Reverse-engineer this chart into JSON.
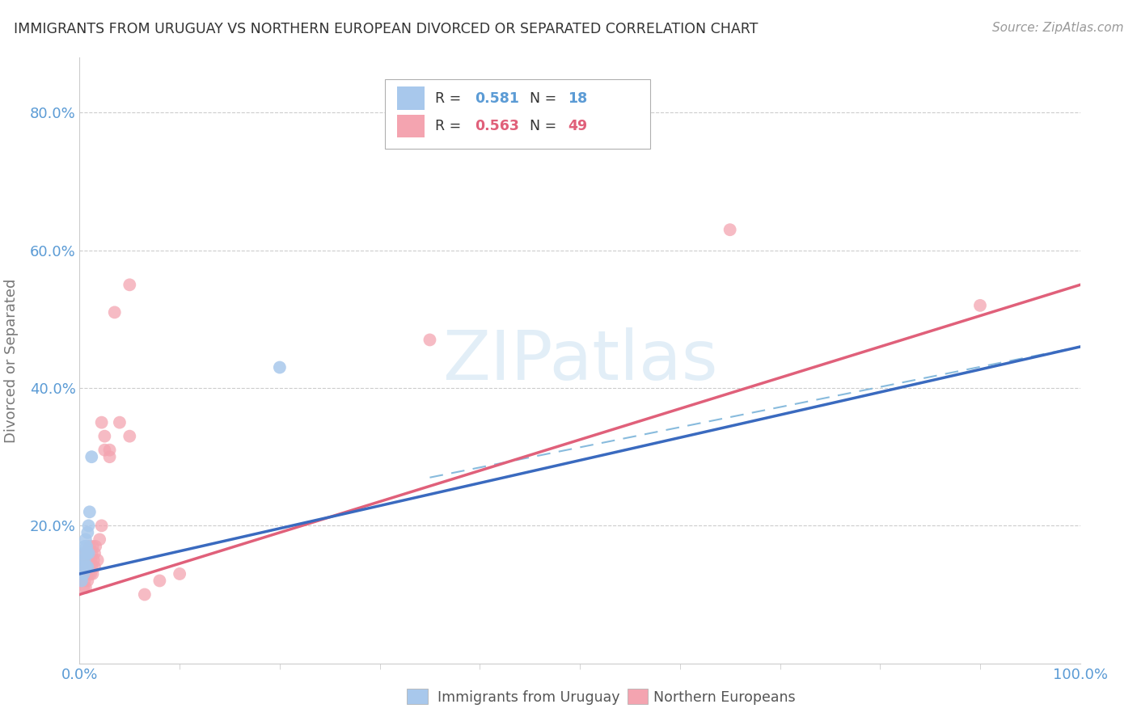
{
  "title": "IMMIGRANTS FROM URUGUAY VS NORTHERN EUROPEAN DIVORCED OR SEPARATED CORRELATION CHART",
  "source": "Source: ZipAtlas.com",
  "ylabel": "Divorced or Separated",
  "xlim": [
    0.0,
    1.0
  ],
  "ylim": [
    0.0,
    0.88
  ],
  "yticks": [
    0.0,
    0.2,
    0.4,
    0.6,
    0.8
  ],
  "ytick_labels": [
    "",
    "20.0%",
    "40.0%",
    "60.0%",
    "80.0%"
  ],
  "bg_color": "#ffffff",
  "grid_color": "#cccccc",
  "title_color": "#333333",
  "tick_color": "#5b9bd5",
  "r_color_blue": "#5b9bd5",
  "r_color_pink": "#e0607a",
  "series_uruguay": {
    "label": "Immigrants from Uruguay",
    "color": "#a8c8ec",
    "line_color": "#3a6abf",
    "N": 18,
    "R": 0.581,
    "x": [
      0.002,
      0.003,
      0.003,
      0.004,
      0.004,
      0.005,
      0.005,
      0.006,
      0.006,
      0.007,
      0.007,
      0.008,
      0.008,
      0.009,
      0.009,
      0.01,
      0.012,
      0.2
    ],
    "y": [
      0.12,
      0.14,
      0.15,
      0.16,
      0.13,
      0.17,
      0.15,
      0.18,
      0.14,
      0.16,
      0.17,
      0.19,
      0.14,
      0.2,
      0.16,
      0.22,
      0.3,
      0.43
    ]
  },
  "series_northern": {
    "label": "Northern Europeans",
    "color": "#f4a4b0",
    "line_color": "#e0607a",
    "N": 49,
    "R": 0.563,
    "x": [
      0.002,
      0.003,
      0.003,
      0.004,
      0.004,
      0.004,
      0.005,
      0.005,
      0.005,
      0.006,
      0.006,
      0.006,
      0.007,
      0.007,
      0.008,
      0.008,
      0.008,
      0.009,
      0.009,
      0.01,
      0.01,
      0.011,
      0.011,
      0.012,
      0.012,
      0.013,
      0.013,
      0.014,
      0.015,
      0.015,
      0.016,
      0.018,
      0.02,
      0.022,
      0.022,
      0.025,
      0.025,
      0.03,
      0.03,
      0.035,
      0.04,
      0.05,
      0.05,
      0.065,
      0.08,
      0.1,
      0.35,
      0.65,
      0.9
    ],
    "y": [
      0.12,
      0.13,
      0.14,
      0.11,
      0.14,
      0.15,
      0.12,
      0.14,
      0.15,
      0.11,
      0.13,
      0.16,
      0.13,
      0.15,
      0.12,
      0.14,
      0.16,
      0.13,
      0.15,
      0.14,
      0.17,
      0.13,
      0.15,
      0.14,
      0.16,
      0.13,
      0.17,
      0.15,
      0.14,
      0.16,
      0.17,
      0.15,
      0.18,
      0.2,
      0.35,
      0.31,
      0.33,
      0.3,
      0.31,
      0.51,
      0.35,
      0.33,
      0.55,
      0.1,
      0.12,
      0.13,
      0.47,
      0.63,
      0.52
    ]
  },
  "line_uruguay_solid": {
    "x0": 0.0,
    "y0": 0.13,
    "x1": 1.0,
    "y1": 0.46
  },
  "line_northern_solid": {
    "x0": 0.0,
    "y0": 0.1,
    "x1": 1.0,
    "y1": 0.55
  },
  "line_uruguay_dashed": {
    "x0": 0.0,
    "y0": 0.13,
    "x1": 1.0,
    "y1": 0.46
  },
  "line_northern_dashed": {
    "x0": 0.35,
    "y0": 0.27,
    "x1": 1.0,
    "y1": 0.46
  },
  "watermark_color": "#d6e8f5",
  "legend_border_color": "#b0b0b0"
}
